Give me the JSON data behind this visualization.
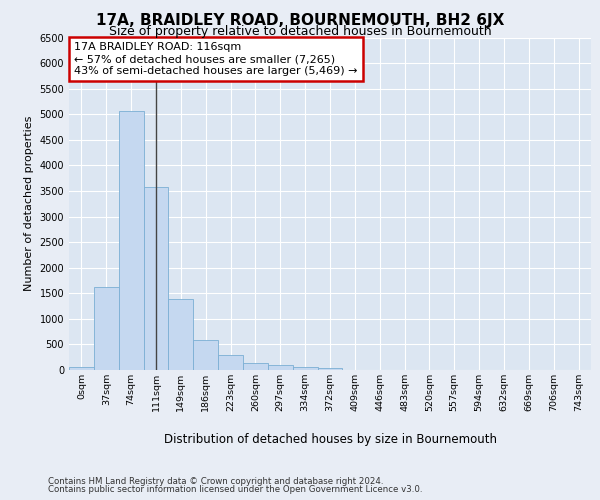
{
  "title": "17A, BRAIDLEY ROAD, BOURNEMOUTH, BH2 6JX",
  "subtitle": "Size of property relative to detached houses in Bournemouth",
  "xlabel": "Distribution of detached houses by size in Bournemouth",
  "ylabel": "Number of detached properties",
  "footer_line1": "Contains HM Land Registry data © Crown copyright and database right 2024.",
  "footer_line2": "Contains public sector information licensed under the Open Government Licence v3.0.",
  "bin_labels": [
    "0sqm",
    "37sqm",
    "74sqm",
    "111sqm",
    "149sqm",
    "186sqm",
    "223sqm",
    "260sqm",
    "297sqm",
    "334sqm",
    "372sqm",
    "409sqm",
    "446sqm",
    "483sqm",
    "520sqm",
    "557sqm",
    "594sqm",
    "632sqm",
    "669sqm",
    "706sqm",
    "743sqm"
  ],
  "bar_values": [
    65,
    1630,
    5060,
    3570,
    1390,
    580,
    290,
    145,
    95,
    65,
    45,
    0,
    0,
    0,
    0,
    0,
    0,
    0,
    0,
    0,
    0
  ],
  "bar_color": "#c5d8f0",
  "bar_edge_color": "#7bafd4",
  "property_line_bin_index": 3,
  "annotation_title": "17A BRAIDLEY ROAD: 116sqm",
  "annotation_line1": "← 57% of detached houses are smaller (7,265)",
  "annotation_line2": "43% of semi-detached houses are larger (5,469) →",
  "annotation_box_facecolor": "#ffffff",
  "annotation_box_edgecolor": "#cc0000",
  "ylim": [
    0,
    6500
  ],
  "yticks": [
    0,
    500,
    1000,
    1500,
    2000,
    2500,
    3000,
    3500,
    4000,
    4500,
    5000,
    5500,
    6000,
    6500
  ],
  "background_color": "#e8edf5",
  "plot_bg_color": "#dce6f2",
  "grid_color": "#ffffff",
  "title_fontsize": 11,
  "subtitle_fontsize": 9
}
